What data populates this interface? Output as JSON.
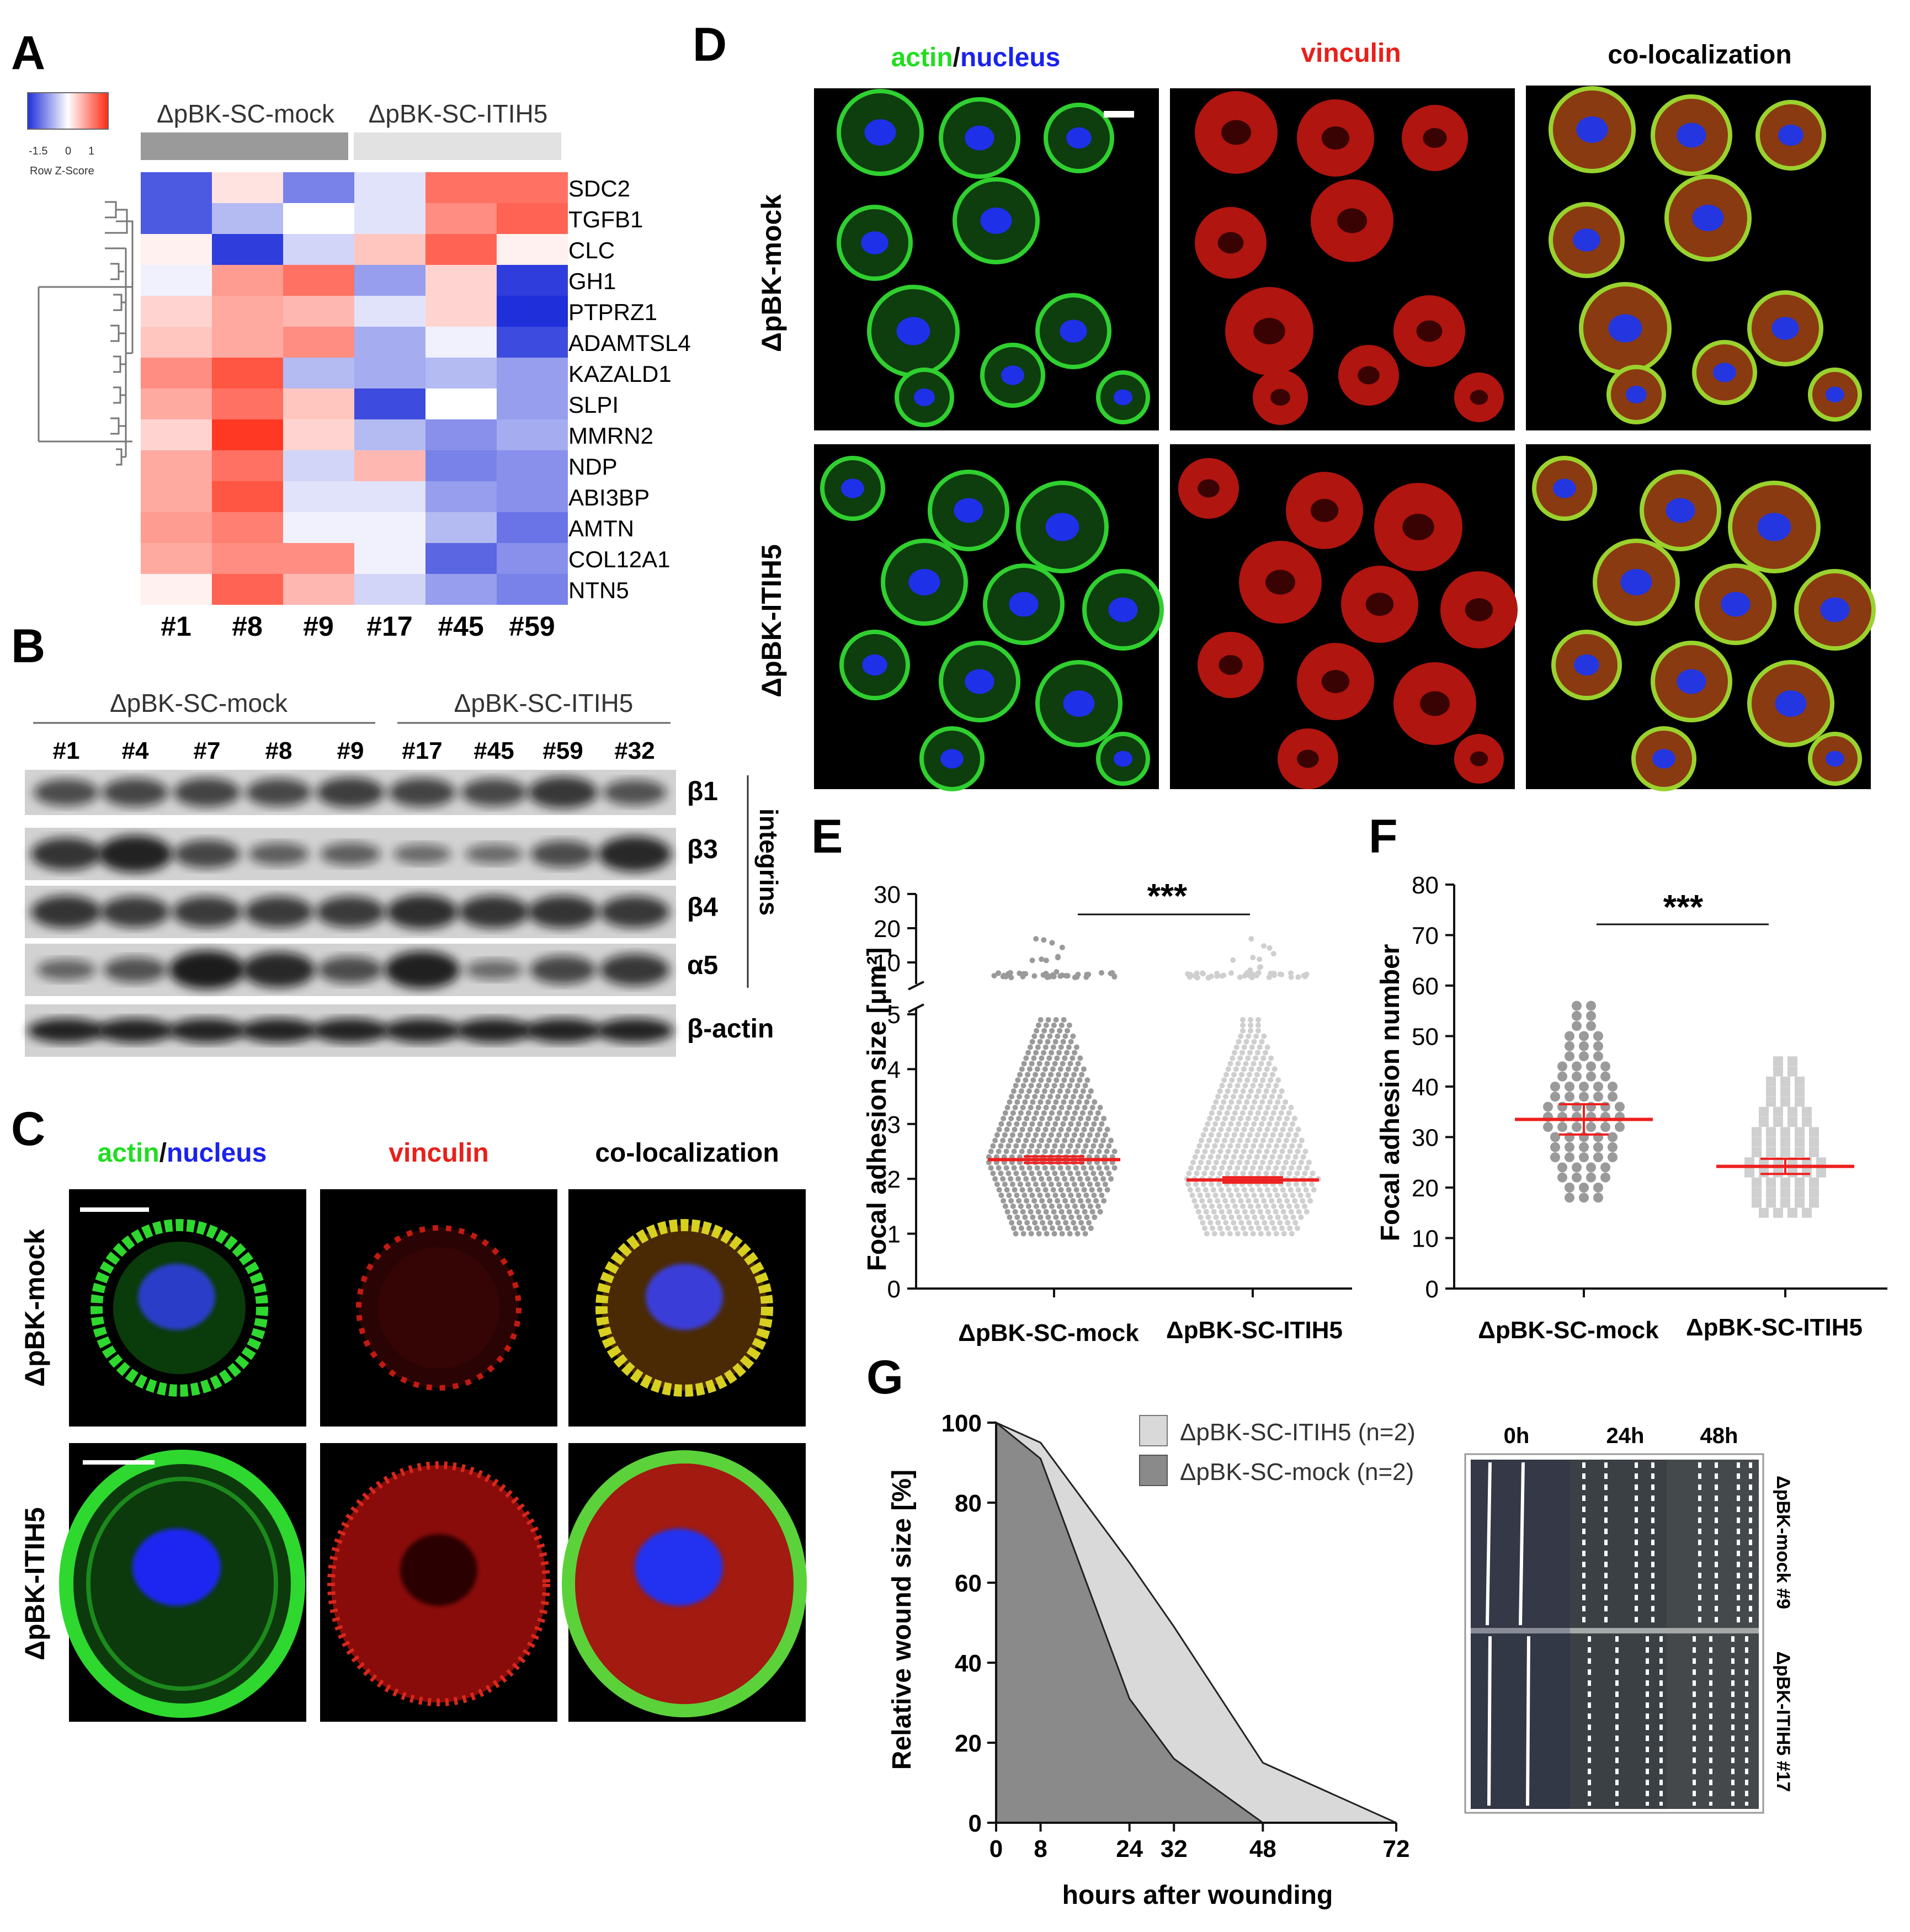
{
  "panel_letters": {
    "a": "A",
    "b": "B",
    "c": "C",
    "d": "D",
    "e": "E",
    "f": "F",
    "g": "G"
  },
  "heatmap": {
    "colorkey": {
      "min": "-1.5",
      "mid": "0",
      "max": "1",
      "title": "Row Z-Score"
    },
    "groups": [
      "ΔpBK-SC-mock",
      "ΔpBK-SC-ITIH5"
    ],
    "genes": [
      "SDC2",
      "TGFB1",
      "CLC",
      "GH1",
      "PTPRZ1",
      "ADAMTSL4",
      "KAZALD1",
      "SLPI",
      "MMRN2",
      "NDP",
      "ABI3BP",
      "AMTN",
      "COL12A1",
      "NTN5"
    ],
    "samples": [
      "#1",
      "#8",
      "#9",
      "#17",
      "#45",
      "#59"
    ],
    "values": [
      [
        -1.2,
        0.2,
        -0.9,
        -0.2,
        1.0,
        1.0
      ],
      [
        -1.2,
        -0.5,
        0.0,
        -0.2,
        0.8,
        1.1
      ],
      [
        0.1,
        -1.4,
        -0.3,
        0.4,
        1.1,
        0.1
      ],
      [
        -0.1,
        0.7,
        1.0,
        -0.7,
        0.3,
        -1.4
      ],
      [
        0.3,
        0.6,
        0.5,
        -0.2,
        0.3,
        -1.5
      ],
      [
        0.4,
        0.6,
        0.8,
        -0.6,
        -0.1,
        -1.3
      ],
      [
        0.8,
        1.2,
        -0.5,
        -0.6,
        -0.5,
        -0.7
      ],
      [
        0.6,
        1.0,
        0.4,
        -1.3,
        0.0,
        -0.7
      ],
      [
        0.3,
        1.4,
        0.3,
        -0.5,
        -0.8,
        -0.6
      ],
      [
        0.6,
        1.0,
        -0.3,
        0.5,
        -0.9,
        -0.8
      ],
      [
        0.6,
        1.2,
        -0.2,
        -0.2,
        -0.7,
        -0.8
      ],
      [
        0.7,
        0.9,
        -0.1,
        -0.1,
        -0.5,
        -1.0
      ],
      [
        0.6,
        0.8,
        0.8,
        -0.1,
        -1.1,
        -0.8
      ],
      [
        0.1,
        1.1,
        0.5,
        -0.3,
        -0.7,
        -0.9
      ]
    ],
    "colors": {
      "low": "#1f2fd9",
      "mid": "#ffffff",
      "high": "#ff2a14"
    }
  },
  "western": {
    "groups": [
      "ΔpBK-SC-mock",
      "ΔpBK-SC-ITIH5"
    ],
    "lanes": [
      "#1",
      "#4",
      "#7",
      "#8",
      "#9",
      "#17",
      "#45",
      "#59",
      "#32"
    ],
    "rows": [
      "β1",
      "β3",
      "β4",
      "α5",
      "β-actin"
    ],
    "bracket_label": "integrins"
  },
  "panel_c": {
    "channels": [
      {
        "parts": [
          {
            "text": "actin",
            "color": "#22dd22"
          },
          {
            "text": "/",
            "color": "#111111"
          },
          {
            "text": "nucleus",
            "color": "#1a22ee"
          }
        ]
      },
      {
        "parts": [
          {
            "text": "vinculin",
            "color": "#e8201a"
          }
        ]
      },
      {
        "parts": [
          {
            "text": "co-localization",
            "color": "#111111"
          }
        ]
      }
    ],
    "rows": [
      "ΔpBK-mock",
      "ΔpBK-ITIH5"
    ]
  },
  "panel_d": {
    "channels": [
      {
        "parts": [
          {
            "text": "actin",
            "color": "#22dd22"
          },
          {
            "text": "/",
            "color": "#111111"
          },
          {
            "text": "nucleus",
            "color": "#1a22ee"
          }
        ]
      },
      {
        "parts": [
          {
            "text": "vinculin",
            "color": "#e8201a"
          }
        ]
      },
      {
        "parts": [
          {
            "text": "co-localization",
            "color": "#111111"
          }
        ]
      }
    ],
    "rows": [
      "ΔpBK-mock",
      "ΔpBK-ITIH5"
    ]
  },
  "chart_data": [
    {
      "panel": "E",
      "type": "scatter",
      "ylabel": "Focal adhesion size [μm²]",
      "categories": [
        "ΔpBK-SC-mock",
        "ΔpBK-SC-ITIH5"
      ],
      "yticks_lower": [
        "0",
        "1",
        "2",
        "3",
        "4",
        "5"
      ],
      "yticks_upper": [
        "10",
        "20",
        "30"
      ],
      "ylim_lower": [
        0,
        5
      ],
      "ylim_upper": [
        5,
        30
      ],
      "means": [
        2.35,
        1.98
      ],
      "sem": [
        0.06,
        0.05
      ],
      "spread_max_lower": [
        4.9,
        4.9
      ],
      "significance": "***",
      "point_colors": [
        "#9a9a9a",
        "#cfcfcf"
      ],
      "mean_color": "#ee1f1f"
    },
    {
      "panel": "F",
      "type": "scatter",
      "ylabel": "Focal adhesion number",
      "categories": [
        "ΔpBK-SC-mock",
        "ΔpBK-SC-ITIH5"
      ],
      "yticks": [
        "0",
        "10",
        "20",
        "30",
        "40",
        "50",
        "60",
        "70",
        "80"
      ],
      "ylim": [
        0,
        80
      ],
      "means": [
        33.5,
        24.2
      ],
      "sem": [
        3.0,
        1.5
      ],
      "range_min": [
        18,
        15
      ],
      "range_max": [
        57,
        45
      ],
      "significance": "***",
      "point_colors": [
        "#9a9a9a",
        "#cfcfcf"
      ],
      "mean_color": "#ee1f1f"
    },
    {
      "panel": "G",
      "type": "area",
      "xlabel": "hours after wounding",
      "ylabel": "Relative wound size [%]",
      "x": [
        0,
        8,
        24,
        32,
        48,
        72
      ],
      "xlim": [
        0,
        72
      ],
      "ylim": [
        0,
        100
      ],
      "xticks": [
        "0",
        "8",
        "24",
        "32",
        "48",
        "72"
      ],
      "yticks": [
        "0",
        "20",
        "40",
        "60",
        "80",
        "100"
      ],
      "series": [
        {
          "name": "ΔpBK-SC-ITIH5 (n=2)",
          "values": [
            100,
            95,
            65,
            49,
            15,
            0
          ],
          "color": "#d9d9d9"
        },
        {
          "name": "ΔpBK-SC-mock (n=2)",
          "values": [
            100,
            91,
            31,
            16,
            0,
            0
          ],
          "color": "#8a8a8a"
        }
      ],
      "timepoints": [
        "0h",
        "24h",
        "48h"
      ],
      "image_rows": [
        "ΔpBK-mock #9",
        "ΔpBK-ITIH5 #17"
      ]
    }
  ]
}
